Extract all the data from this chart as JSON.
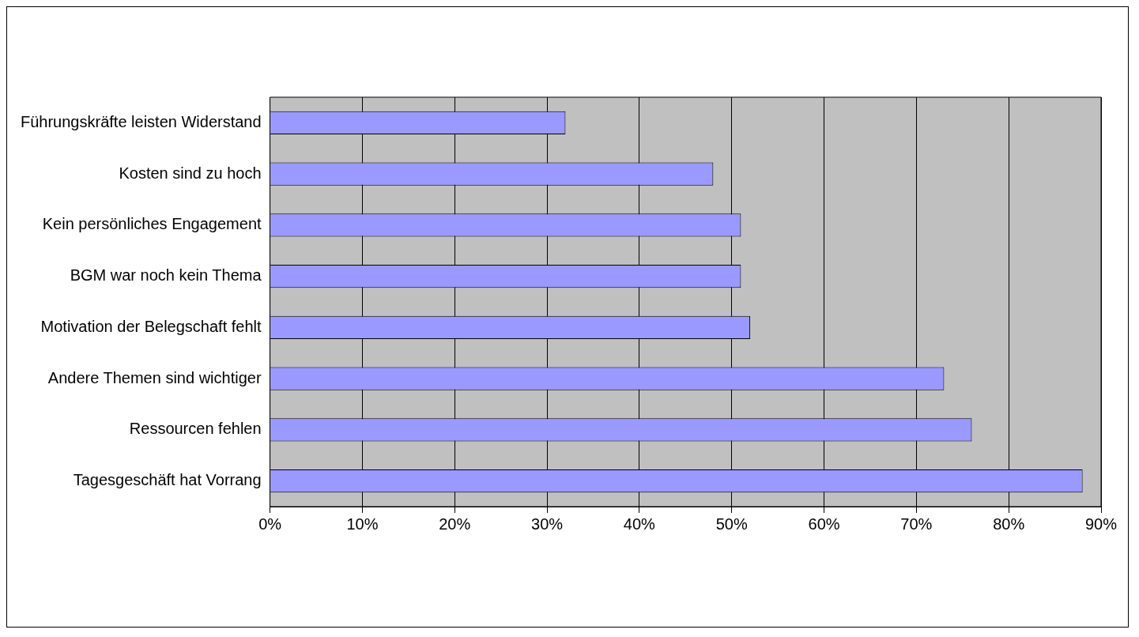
{
  "chart_data": {
    "type": "bar",
    "orientation": "horizontal",
    "categories": [
      "Führungskräfte leisten Widerstand",
      "Kosten sind zu hoch",
      "Kein persönliches Engagement",
      "BGM war noch kein Thema",
      "Motivation der Belegschaft fehlt",
      "Andere Themen sind wichtiger",
      "Ressourcen fehlen",
      "Tagesgeschäft hat Vorrang"
    ],
    "values": [
      32,
      48,
      51,
      51,
      52,
      73,
      76,
      88
    ],
    "color": "#9999ff",
    "xlim": [
      0,
      90
    ],
    "xticks": [
      {
        "value": 0,
        "label": "0%"
      },
      {
        "value": 10,
        "label": "10%"
      },
      {
        "value": 20,
        "label": "20%"
      },
      {
        "value": 30,
        "label": "30%"
      },
      {
        "value": 40,
        "label": "40%"
      },
      {
        "value": 50,
        "label": "50%"
      },
      {
        "value": 60,
        "label": "60%"
      },
      {
        "value": 70,
        "label": "70%"
      },
      {
        "value": 80,
        "label": "80%"
      },
      {
        "value": 90,
        "label": "90%"
      }
    ],
    "grid": "x",
    "legend": false
  }
}
